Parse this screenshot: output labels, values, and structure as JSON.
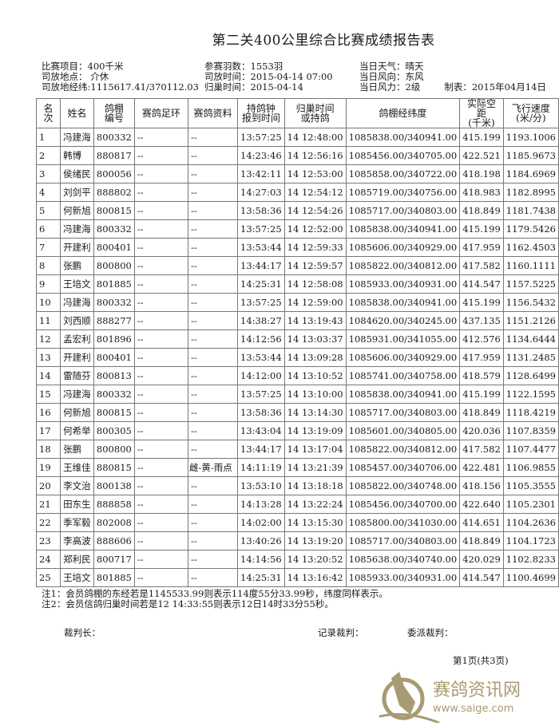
{
  "title": "第二关400公里综合比赛成绩报告表",
  "info": {
    "col1": [
      "比赛项目：400千米",
      "司放地点： 介休",
      "司放地经纬:1115617.41/370112.03"
    ],
    "col2": [
      "参赛羽数：1553羽",
      "司放时间：2015-04-14 07:00",
      "归巢时间：2015-04-14"
    ],
    "col3": [
      "当日天气：晴天",
      "当日风向：东风",
      "当日风力：2级"
    ],
    "made": "制表：2015年04月14日"
  },
  "headers": [
    "名次",
    "姓名",
    "鸽棚\n编号",
    "赛鸽足环",
    "赛鸽资料",
    "持鸽钟\n报到时间",
    "归巢时间\n或持鸽",
    "鸽棚经纬度",
    "实际空距\n(千米)",
    "飞行速度\n(米/分)"
  ],
  "rows": [
    [
      "1",
      "冯建海",
      "800332",
      "--",
      "--",
      "13:57:25",
      "14 12:48:00",
      "1085838.00/340941.00",
      "415.199",
      "1193.1006"
    ],
    [
      "2",
      "韩博",
      "880817",
      "--",
      "--",
      "14:23:46",
      "14 12:56:16",
      "1085456.00/340705.00",
      "422.521",
      "1185.9673"
    ],
    [
      "3",
      "侯绪民",
      "800056",
      "--",
      "--",
      "13:42:11",
      "14 12:53:00",
      "1085858.00/340722.00",
      "418.198",
      "1184.6969"
    ],
    [
      "4",
      "刘剑平",
      "888802",
      "--",
      "--",
      "14:27:03",
      "14 12:54:12",
      "1085719.00/340756.00",
      "418.983",
      "1182.8995"
    ],
    [
      "5",
      "何新旭",
      "800815",
      "--",
      "--",
      "13:58:36",
      "14 12:54:26",
      "1085717.00/340803.00",
      "418.849",
      "1181.7438"
    ],
    [
      "6",
      "冯建海",
      "800332",
      "--",
      "--",
      "13:57:25",
      "14 12:52:00",
      "1085838.00/340941.00",
      "415.199",
      "1179.5426"
    ],
    [
      "7",
      "开建利",
      "800401",
      "--",
      "--",
      "13:53:44",
      "14 12:59:33",
      "1085606.00/340929.00",
      "417.959",
      "1162.4503"
    ],
    [
      "8",
      "张鹏",
      "800800",
      "--",
      "--",
      "13:44:17",
      "14 12:59:57",
      "1085822.00/340812.00",
      "417.582",
      "1160.1111"
    ],
    [
      "9",
      "王培文",
      "801885",
      "--",
      "--",
      "14:25:31",
      "14 12:58:08",
      "1085933.00/340931.00",
      "414.547",
      "1157.5225"
    ],
    [
      "10",
      "冯建海",
      "800332",
      "--",
      "--",
      "13:57:25",
      "14 12:59:00",
      "1085838.00/340941.00",
      "415.199",
      "1156.5432"
    ],
    [
      "11",
      "刘西顺",
      "888277",
      "--",
      "--",
      "14:38:27",
      "14 13:19:43",
      "1084620.00/340245.00",
      "437.135",
      "1151.2126"
    ],
    [
      "12",
      "孟宏利",
      "801896",
      "--",
      "--",
      "14:12:56",
      "14 13:03:37",
      "1085931.00/341055.00",
      "412.576",
      "1134.6444"
    ],
    [
      "13",
      "开建利",
      "800401",
      "--",
      "--",
      "13:53:44",
      "14 13:09:28",
      "1085606.00/340929.00",
      "417.959",
      "1131.2485"
    ],
    [
      "14",
      "雷随芬",
      "800813",
      "--",
      "--",
      "14:12:00",
      "14 13:10:52",
      "1085741.00/340758.00",
      "418.579",
      "1128.6499"
    ],
    [
      "15",
      "冯建海",
      "800332",
      "--",
      "--",
      "13:57:25",
      "14 13:10:00",
      "1085838.00/340941.00",
      "415.199",
      "1122.1595"
    ],
    [
      "16",
      "何新旭",
      "800815",
      "--",
      "--",
      "13:58:36",
      "14 13:14:30",
      "1085717.00/340803.00",
      "418.849",
      "1118.4219"
    ],
    [
      "17",
      "何希举",
      "800305",
      "--",
      "--",
      "13:43:04",
      "14 13:19:09",
      "1085601.00/340805.00",
      "420.036",
      "1107.8359"
    ],
    [
      "18",
      "张鹏",
      "800800",
      "--",
      "--",
      "13:44:17",
      "14 13:17:04",
      "1085822.00/340812.00",
      "417.582",
      "1107.4477"
    ],
    [
      "19",
      "王维佳",
      "880815",
      "--",
      "雌-黄-雨点",
      "14:11:19",
      "14 13:21:39",
      "1085457.00/340706.00",
      "422.481",
      "1106.9855"
    ],
    [
      "20",
      "李文治",
      "800138",
      "--",
      "--",
      "13:53:10",
      "14 13:18:18",
      "1085822.00/340748.00",
      "418.156",
      "1105.3555"
    ],
    [
      "21",
      "田东生",
      "888858",
      "--",
      "--",
      "14:13:28",
      "14 13:22:24",
      "1085456.00/340700.00",
      "422.640",
      "1105.2301"
    ],
    [
      "22",
      "季军毅",
      "802008",
      "--",
      "--",
      "14:02:00",
      "14 13:15:30",
      "1085800.00/341030.00",
      "414.651",
      "1104.2636"
    ],
    [
      "23",
      "李高波",
      "888606",
      "--",
      "--",
      "13:40:26",
      "14 13:19:20",
      "1085717.00/340803.00",
      "418.849",
      "1104.1723"
    ],
    [
      "24",
      "郑利民",
      "800717",
      "--",
      "--",
      "14:14:56",
      "14 13:20:52",
      "1085638.00/340740.00",
      "420.029",
      "1102.8233"
    ],
    [
      "25",
      "王培文",
      "801885",
      "--",
      "--",
      "14:25:31",
      "14 13:16:42",
      "1085933.00/340931.00",
      "414.547",
      "1100.4699"
    ]
  ],
  "notes": [
    "注1：会员鸽棚的东经若是1145533.99则表示114度55分33.99秒，纬度同样表示。",
    "注2：会员信鸽归巢时间若是12 14:33:55则表示12日14时33分55秒。"
  ],
  "signatures": {
    "chief": "裁判长：",
    "recorder": "记录裁判：",
    "delegate": "委派裁判："
  },
  "page": "第1页(共3页)",
  "watermark": {
    "text": "赛鸽资讯网",
    "url": "www.saige.com",
    "color": "#a89a72"
  }
}
